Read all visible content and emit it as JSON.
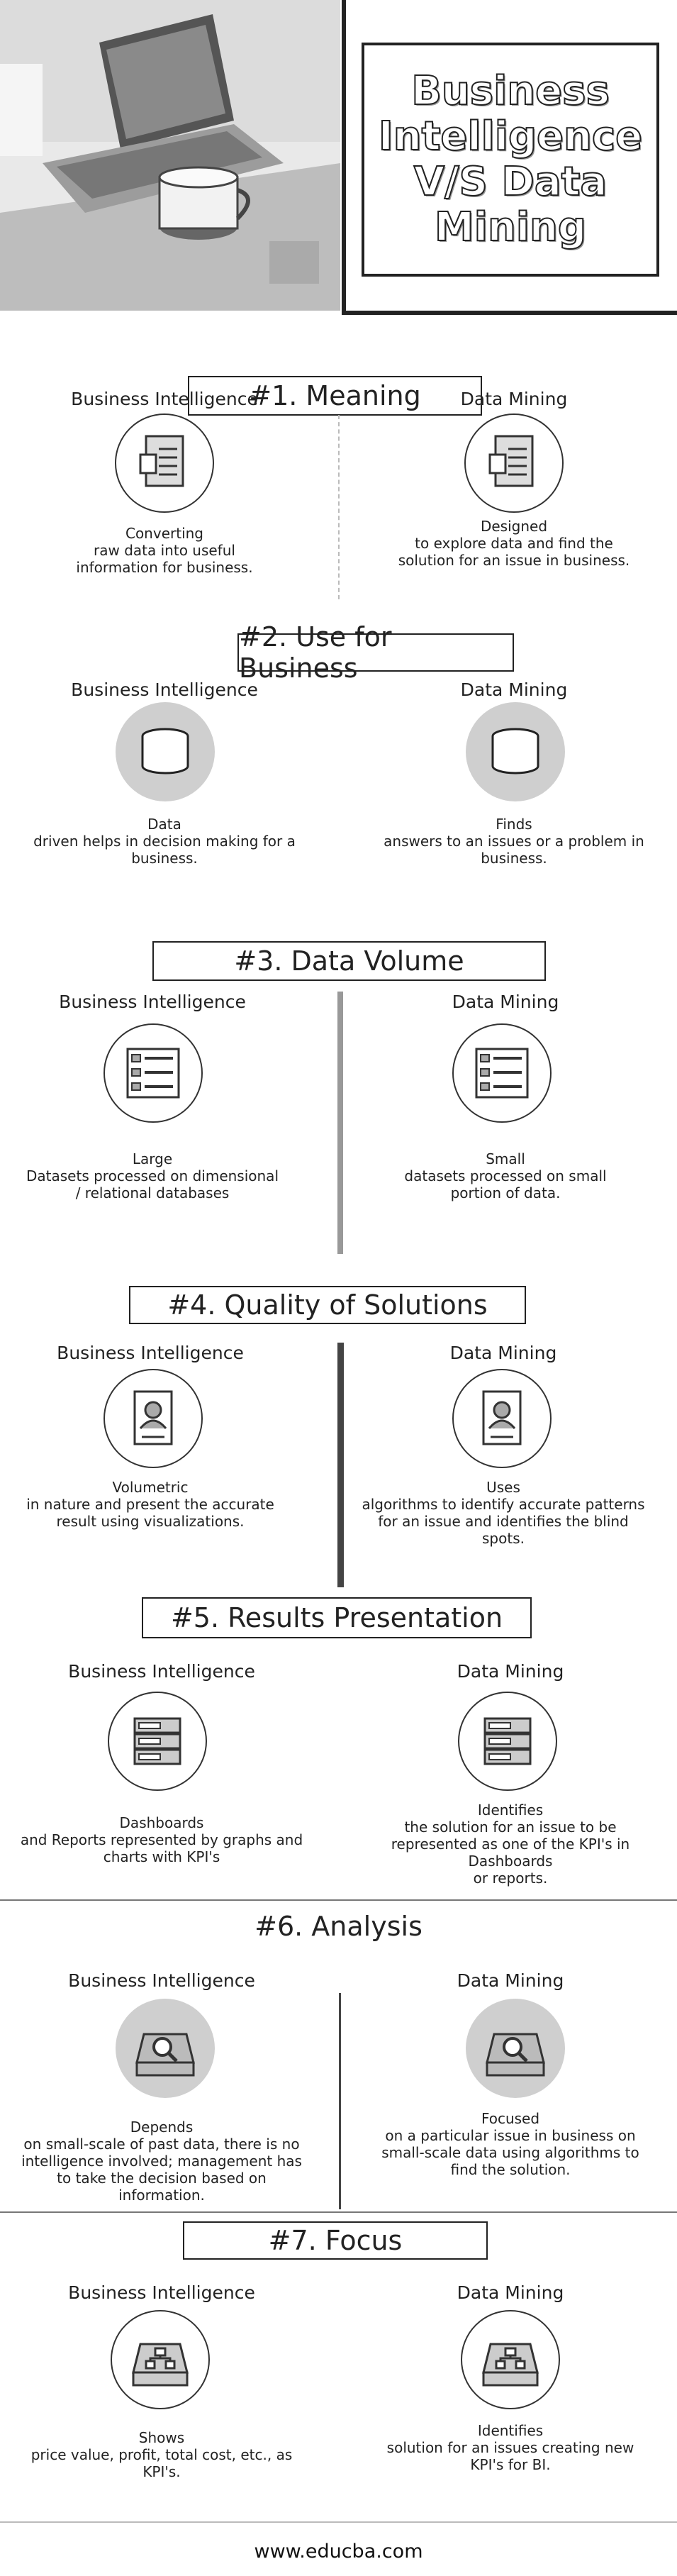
{
  "header": {
    "title": "Business\nIntelligence\nV/S Data\nMining"
  },
  "sections": [
    {
      "heading": "#1. Meaning",
      "left": {
        "label": "Business Intelligence",
        "icon": "document-icon",
        "text": "Converting\nraw data into useful\ninformation for business."
      },
      "right": {
        "label": "Data Mining",
        "icon": "document-icon",
        "text": "Designed\nto explore data and find the\nsolution for an issue in business."
      }
    },
    {
      "heading": "#2. Use for Business",
      "left": {
        "label": "Business Intelligence",
        "icon": "database-icon",
        "text": "Data\ndriven helps in decision making for a\nbusiness."
      },
      "right": {
        "label": "Data Mining",
        "icon": "database-icon",
        "text": "Finds\nanswers to an issues or a problem in\nbusiness."
      }
    },
    {
      "heading": "#3. Data Volume",
      "left": {
        "label": "Business Intelligence",
        "icon": "list-icon",
        "text": "Large\nDatasets processed on dimensional\n/ relational databases"
      },
      "right": {
        "label": "Data Mining",
        "icon": "list-icon",
        "text": "Small\ndatasets processed on small\nportion of data."
      }
    },
    {
      "heading": "#4. Quality of Solutions",
      "left": {
        "label": "Business Intelligence",
        "icon": "profile-card-icon",
        "text": "Volumetric\nin nature and present the accurate\nresult using visualizations."
      },
      "right": {
        "label": "Data Mining",
        "icon": "profile-card-icon",
        "text": "Uses\nalgorithms to identify accurate patterns\nfor an issue and identifies the blind\nspots."
      }
    },
    {
      "heading": "#5. Results Presentation",
      "left": {
        "label": "Business Intelligence",
        "icon": "server-icon",
        "text": "Dashboards\nand Reports represented by graphs and\ncharts with KPI's"
      },
      "right": {
        "label": "Data Mining",
        "icon": "server-icon",
        "text": "Identifies\nthe solution for an issue to be\nrepresented as one of the KPI's in\nDashboards\nor reports."
      }
    },
    {
      "heading": "#6. Analysis",
      "left": {
        "label": "Business Intelligence",
        "icon": "drive-search-icon",
        "text": "Depends\non small-scale of past data, there is no\nintelligence involved; management has\nto take the decision based on\ninformation."
      },
      "right": {
        "label": "Data Mining",
        "icon": "drive-search-icon",
        "text": "Focused\non a particular issue in business on\nsmall-scale data using algorithms to\nfind the solution."
      }
    },
    {
      "heading": "#7. Focus",
      "left": {
        "label": "Business Intelligence",
        "icon": "drive-network-icon",
        "text": "Shows\nprice value, profit, total cost, etc., as\nKPI's."
      },
      "right": {
        "label": "Data Mining",
        "icon": "drive-network-icon",
        "text": "Identifies\nsolution for an issues creating new\nKPI's for BI."
      }
    }
  ],
  "footer": {
    "url": "www.educba.com"
  },
  "colors": {
    "ink": "#222222",
    "icon_fill": "#cfcfcf",
    "divider": "#444444"
  }
}
